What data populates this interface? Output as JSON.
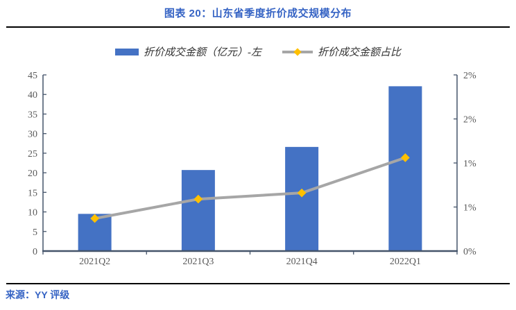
{
  "header": {
    "title": "图表 20：山东省季度折价成交规模分布"
  },
  "footer": {
    "source": "来源：YY 评级"
  },
  "legend": {
    "items": [
      {
        "label": "折价成交金额（亿元）-左",
        "swatch": "bar",
        "color": "#4472c4"
      },
      {
        "label": "折价成交金额占比",
        "swatch": "line-diamond",
        "line_color": "#a6a6a6",
        "marker_color": "#ffc000"
      }
    ]
  },
  "chart_data": {
    "type": "combo_bar_line",
    "title": "图表 20：山东省季度折价成交规模分布",
    "categories": [
      "2021Q2",
      "2021Q3",
      "2021Q4",
      "2022Q1"
    ],
    "series": [
      {
        "name": "折价成交金额（亿元）-左",
        "type": "bar",
        "axis": "left",
        "color": "#4472c4",
        "values": [
          9.5,
          20.7,
          26.6,
          42.1
        ]
      },
      {
        "name": "折价成交金额占比",
        "type": "line",
        "axis": "right",
        "color": "#a6a6a6",
        "marker": "diamond",
        "marker_color": "#ffc000",
        "values": [
          0.37,
          0.59,
          0.66,
          1.06
        ]
      }
    ],
    "left_axis": {
      "min": 0,
      "max": 45,
      "tick_step": 5,
      "tick_labels": [
        "0",
        "5",
        "10",
        "15",
        "20",
        "25",
        "30",
        "35",
        "40",
        "45"
      ]
    },
    "right_axis": {
      "min": 0,
      "max": 2,
      "tick_values": [
        0,
        0.5,
        1,
        1.5,
        2
      ],
      "tick_labels": [
        "0%",
        "1%",
        "1%",
        "2%",
        "2%"
      ]
    },
    "grid": false,
    "legend_position": "top",
    "axis_color": "#44546a",
    "tick_label_color": "#595959"
  }
}
